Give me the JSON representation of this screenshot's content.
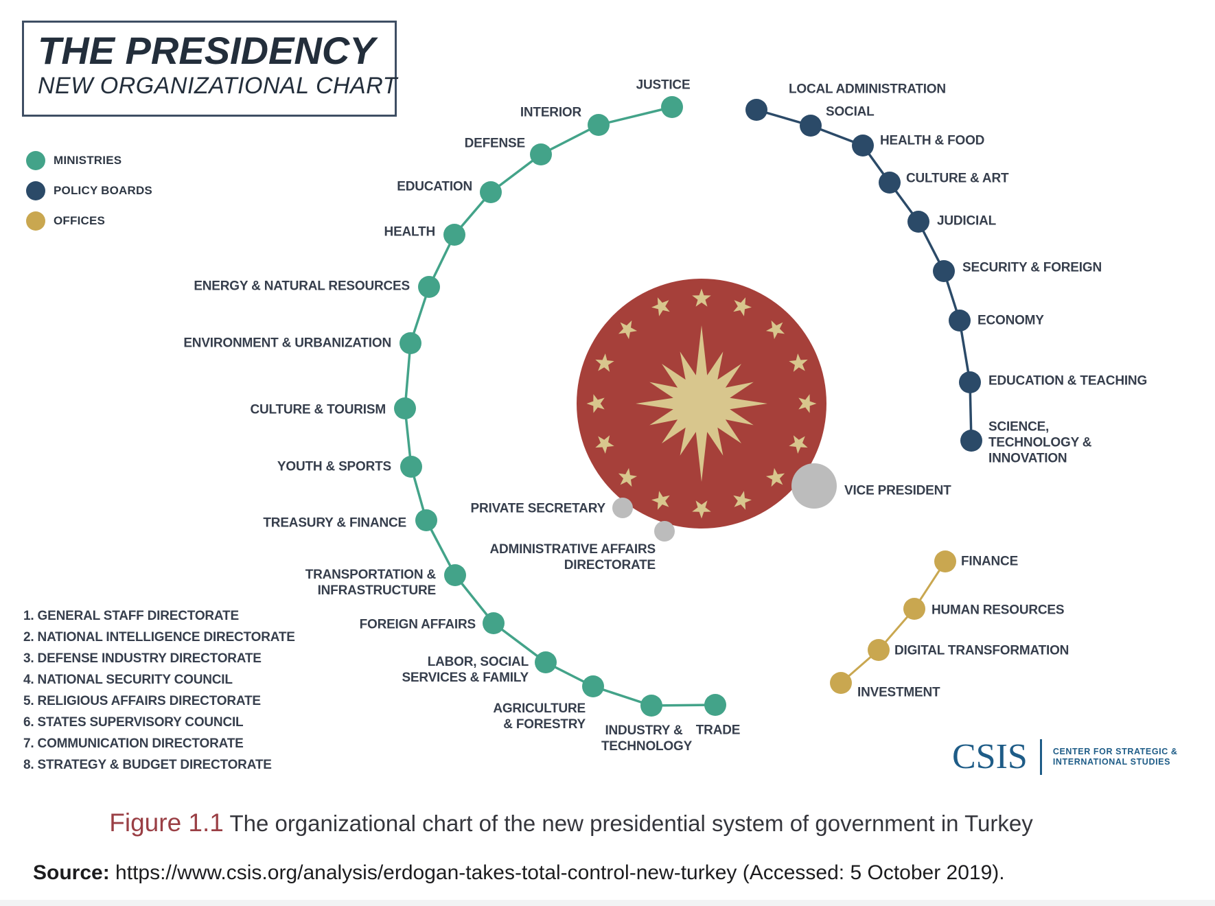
{
  "title": {
    "main": "THE PRESIDENCY",
    "subtitle": "NEW ORGANIZATIONAL CHART"
  },
  "legend": {
    "items": [
      {
        "label": "MINISTRIES",
        "color": "#43A389"
      },
      {
        "label": "POLICY BOARDS",
        "color": "#2B4A68"
      },
      {
        "label": "OFFICES",
        "color": "#C9A750"
      }
    ]
  },
  "center_emblem": {
    "circle_color": "#A6403A",
    "star_color": "#D8C68D"
  },
  "ministries": {
    "color": "#43A389",
    "items": [
      "JUSTICE",
      "INTERIOR",
      "DEFENSE",
      "EDUCATION",
      "HEALTH",
      "ENERGY & NATURAL RESOURCES",
      "ENVIRONMENT & URBANIZATION",
      "CULTURE & TOURISM",
      "YOUTH & SPORTS",
      "TREASURY & FINANCE",
      "TRANSPORTATION & INFRASTRUCTURE",
      "FOREIGN AFFAIRS",
      "LABOR, SOCIAL SERVICES & FAMILY",
      "AGRICULTURE & FORESTRY",
      "INDUSTRY & TECHNOLOGY",
      "TRADE"
    ]
  },
  "policy_boards": {
    "color": "#2B4A68",
    "items": [
      "LOCAL ADMINISTRATION",
      "SOCIAL",
      "HEALTH & FOOD",
      "CULTURE & ART",
      "JUDICIAL",
      "SECURITY & FOREIGN",
      "ECONOMY",
      "EDUCATION & TEACHING",
      "SCIENCE, TECHNOLOGY & INNOVATION"
    ]
  },
  "offices": {
    "color": "#C9A750",
    "items": [
      "FINANCE",
      "HUMAN RESOURCES",
      "DIGITAL TRANSFORMATION",
      "INVESTMENT"
    ]
  },
  "executive": {
    "color": "#BCBCBC",
    "items": [
      "VICE PRESIDENT",
      "PRIVATE SECRETARY",
      "ADMINISTRATIVE AFFAIRS DIRECTORATE"
    ]
  },
  "directorates": [
    {
      "number": "1.",
      "label": "GENERAL STAFF DIRECTORATE"
    },
    {
      "number": "2.",
      "label": "NATIONAL INTELLIGENCE DIRECTORATE"
    },
    {
      "number": "3.",
      "label": "DEFENSE INDUSTRY DIRECTORATE"
    },
    {
      "number": "4.",
      "label": "NATIONAL SECURITY COUNCIL"
    },
    {
      "number": "5.",
      "label": "RELIGIOUS AFFAIRS DIRECTORATE"
    },
    {
      "number": "6.",
      "label": "STATES SUPERVISORY COUNCIL"
    },
    {
      "number": "7.",
      "label": "COMMUNICATION DIRECTORATE"
    },
    {
      "number": "8.",
      "label": "STRATEGY & BUDGET DIRECTORATE"
    }
  ],
  "logo": {
    "wordmark": "CSIS",
    "tagline_line1": "CENTER FOR STRATEGIC &",
    "tagline_line2": "INTERNATIONAL STUDIES",
    "color": "#1E5C87"
  },
  "caption": {
    "figure_label": "Figure 1.1",
    "figure_label_color": "#9A3F45",
    "text": "The organizational chart of the new presidential system of government in Turkey"
  },
  "source": {
    "label": "Source:",
    "text": "https://www.csis.org/analysis/erdogan-takes-total-control-new-turkey (Accessed: 5 October 2019)."
  }
}
